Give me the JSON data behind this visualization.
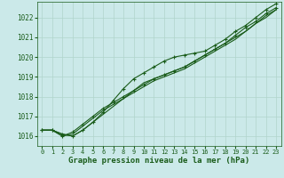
{
  "xlabel": "Graphe pression niveau de la mer (hPa)",
  "background_color": "#cbe9e9",
  "grid_color": "#b0d4cc",
  "line_color": "#1a5c1a",
  "ylim": [
    1015.5,
    1022.8
  ],
  "xlim": [
    -0.5,
    23.5
  ],
  "yticks": [
    1016,
    1017,
    1018,
    1019,
    1020,
    1021,
    1022
  ],
  "xticks": [
    0,
    1,
    2,
    3,
    4,
    5,
    6,
    7,
    8,
    9,
    10,
    11,
    12,
    13,
    14,
    15,
    16,
    17,
    18,
    19,
    20,
    21,
    22,
    23
  ],
  "series": [
    [
      1016.3,
      1016.3,
      1016.1,
      1016.0,
      1016.3,
      1016.7,
      1017.2,
      1017.8,
      1018.4,
      1018.9,
      1019.2,
      1019.5,
      1019.8,
      1020.0,
      1020.1,
      1020.2,
      1020.3,
      1020.6,
      1020.9,
      1021.3,
      1021.6,
      1022.0,
      1022.4,
      1022.7
    ],
    [
      1016.3,
      1016.3,
      1016.1,
      1016.0,
      1016.3,
      1016.7,
      1017.1,
      1017.5,
      1017.9,
      1018.3,
      1018.7,
      1018.9,
      1019.1,
      1019.3,
      1019.5,
      1019.8,
      1020.1,
      1020.4,
      1020.7,
      1021.0,
      1021.3,
      1021.7,
      1022.1,
      1022.4
    ],
    [
      1016.3,
      1016.3,
      1016.0,
      1016.1,
      1016.5,
      1016.9,
      1017.3,
      1017.6,
      1017.9,
      1018.2,
      1018.5,
      1018.8,
      1019.0,
      1019.2,
      1019.4,
      1019.7,
      1020.0,
      1020.3,
      1020.6,
      1020.9,
      1021.3,
      1021.7,
      1022.0,
      1022.4
    ],
    [
      1016.3,
      1016.3,
      1016.0,
      1016.2,
      1016.6,
      1017.0,
      1017.4,
      1017.7,
      1018.0,
      1018.3,
      1018.6,
      1018.9,
      1019.1,
      1019.3,
      1019.5,
      1019.8,
      1020.1,
      1020.4,
      1020.7,
      1021.1,
      1021.5,
      1021.8,
      1022.2,
      1022.5
    ]
  ],
  "marker_indices": [
    [
      0,
      1,
      2,
      3,
      4,
      5,
      6,
      7,
      8,
      9,
      10,
      11,
      12,
      13,
      14,
      15,
      16,
      17,
      18,
      19,
      20,
      21,
      22,
      23
    ],
    [],
    [],
    [
      2,
      3,
      4,
      5,
      6,
      7,
      8,
      9,
      10,
      11,
      12,
      13,
      14,
      15,
      16,
      17,
      18,
      19,
      20,
      21,
      22,
      23
    ]
  ],
  "marker": "+",
  "marker_size": 3.5,
  "linewidth": 0.8,
  "tick_fontsize": 5.5,
  "xlabel_fontsize": 6.5
}
